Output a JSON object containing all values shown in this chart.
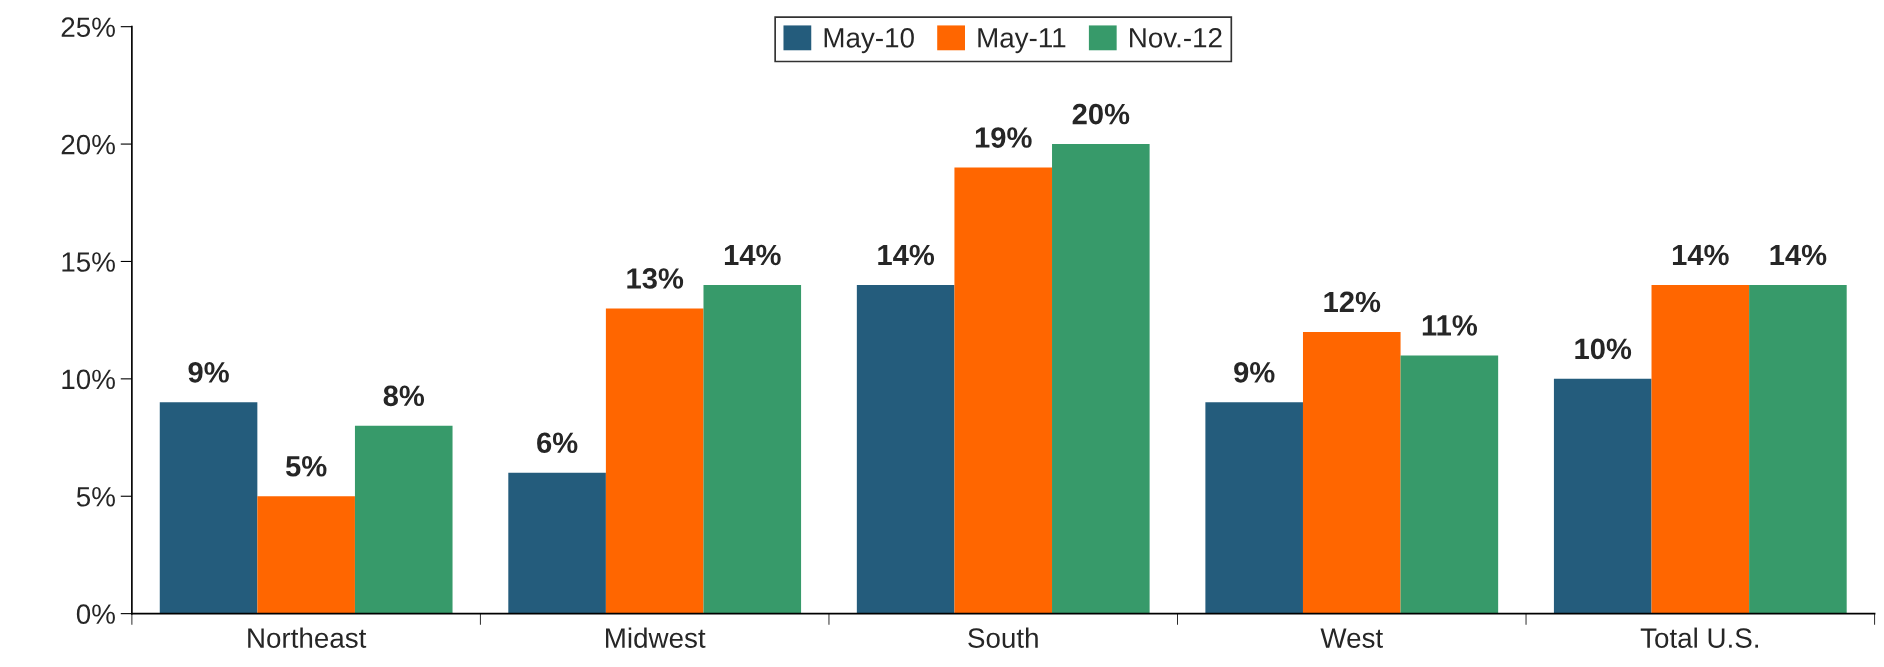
{
  "chart_data": {
    "type": "bar",
    "categories": [
      "Northeast",
      "Midwest",
      "South",
      "West",
      "Total U.S."
    ],
    "series": [
      {
        "name": "May-10",
        "color": "#245c7c",
        "values": [
          9,
          6,
          14,
          9,
          10
        ],
        "value_labels": [
          "9%",
          "6%",
          "14%",
          "9%",
          "10%"
        ]
      },
      {
        "name": "May-11",
        "color": "#ff6600",
        "values": [
          5,
          13,
          19,
          12,
          14
        ],
        "value_labels": [
          "5%",
          "13%",
          "19%",
          "12%",
          "14%"
        ]
      },
      {
        "name": "Nov.-12",
        "color": "#379a6a",
        "values": [
          8,
          14,
          20,
          11,
          14
        ],
        "value_labels": [
          "8%",
          "14%",
          "20%",
          "11%",
          "14%"
        ]
      }
    ],
    "ylim": [
      0,
      25
    ],
    "yticks": [
      {
        "value": 0,
        "label": "0%"
      },
      {
        "value": 5,
        "label": "5%"
      },
      {
        "value": 10,
        "label": "10%"
      },
      {
        "value": 15,
        "label": "15%"
      },
      {
        "value": 20,
        "label": "20%"
      },
      {
        "value": 25,
        "label": "25%"
      }
    ],
    "grid": false,
    "legend": "top"
  }
}
